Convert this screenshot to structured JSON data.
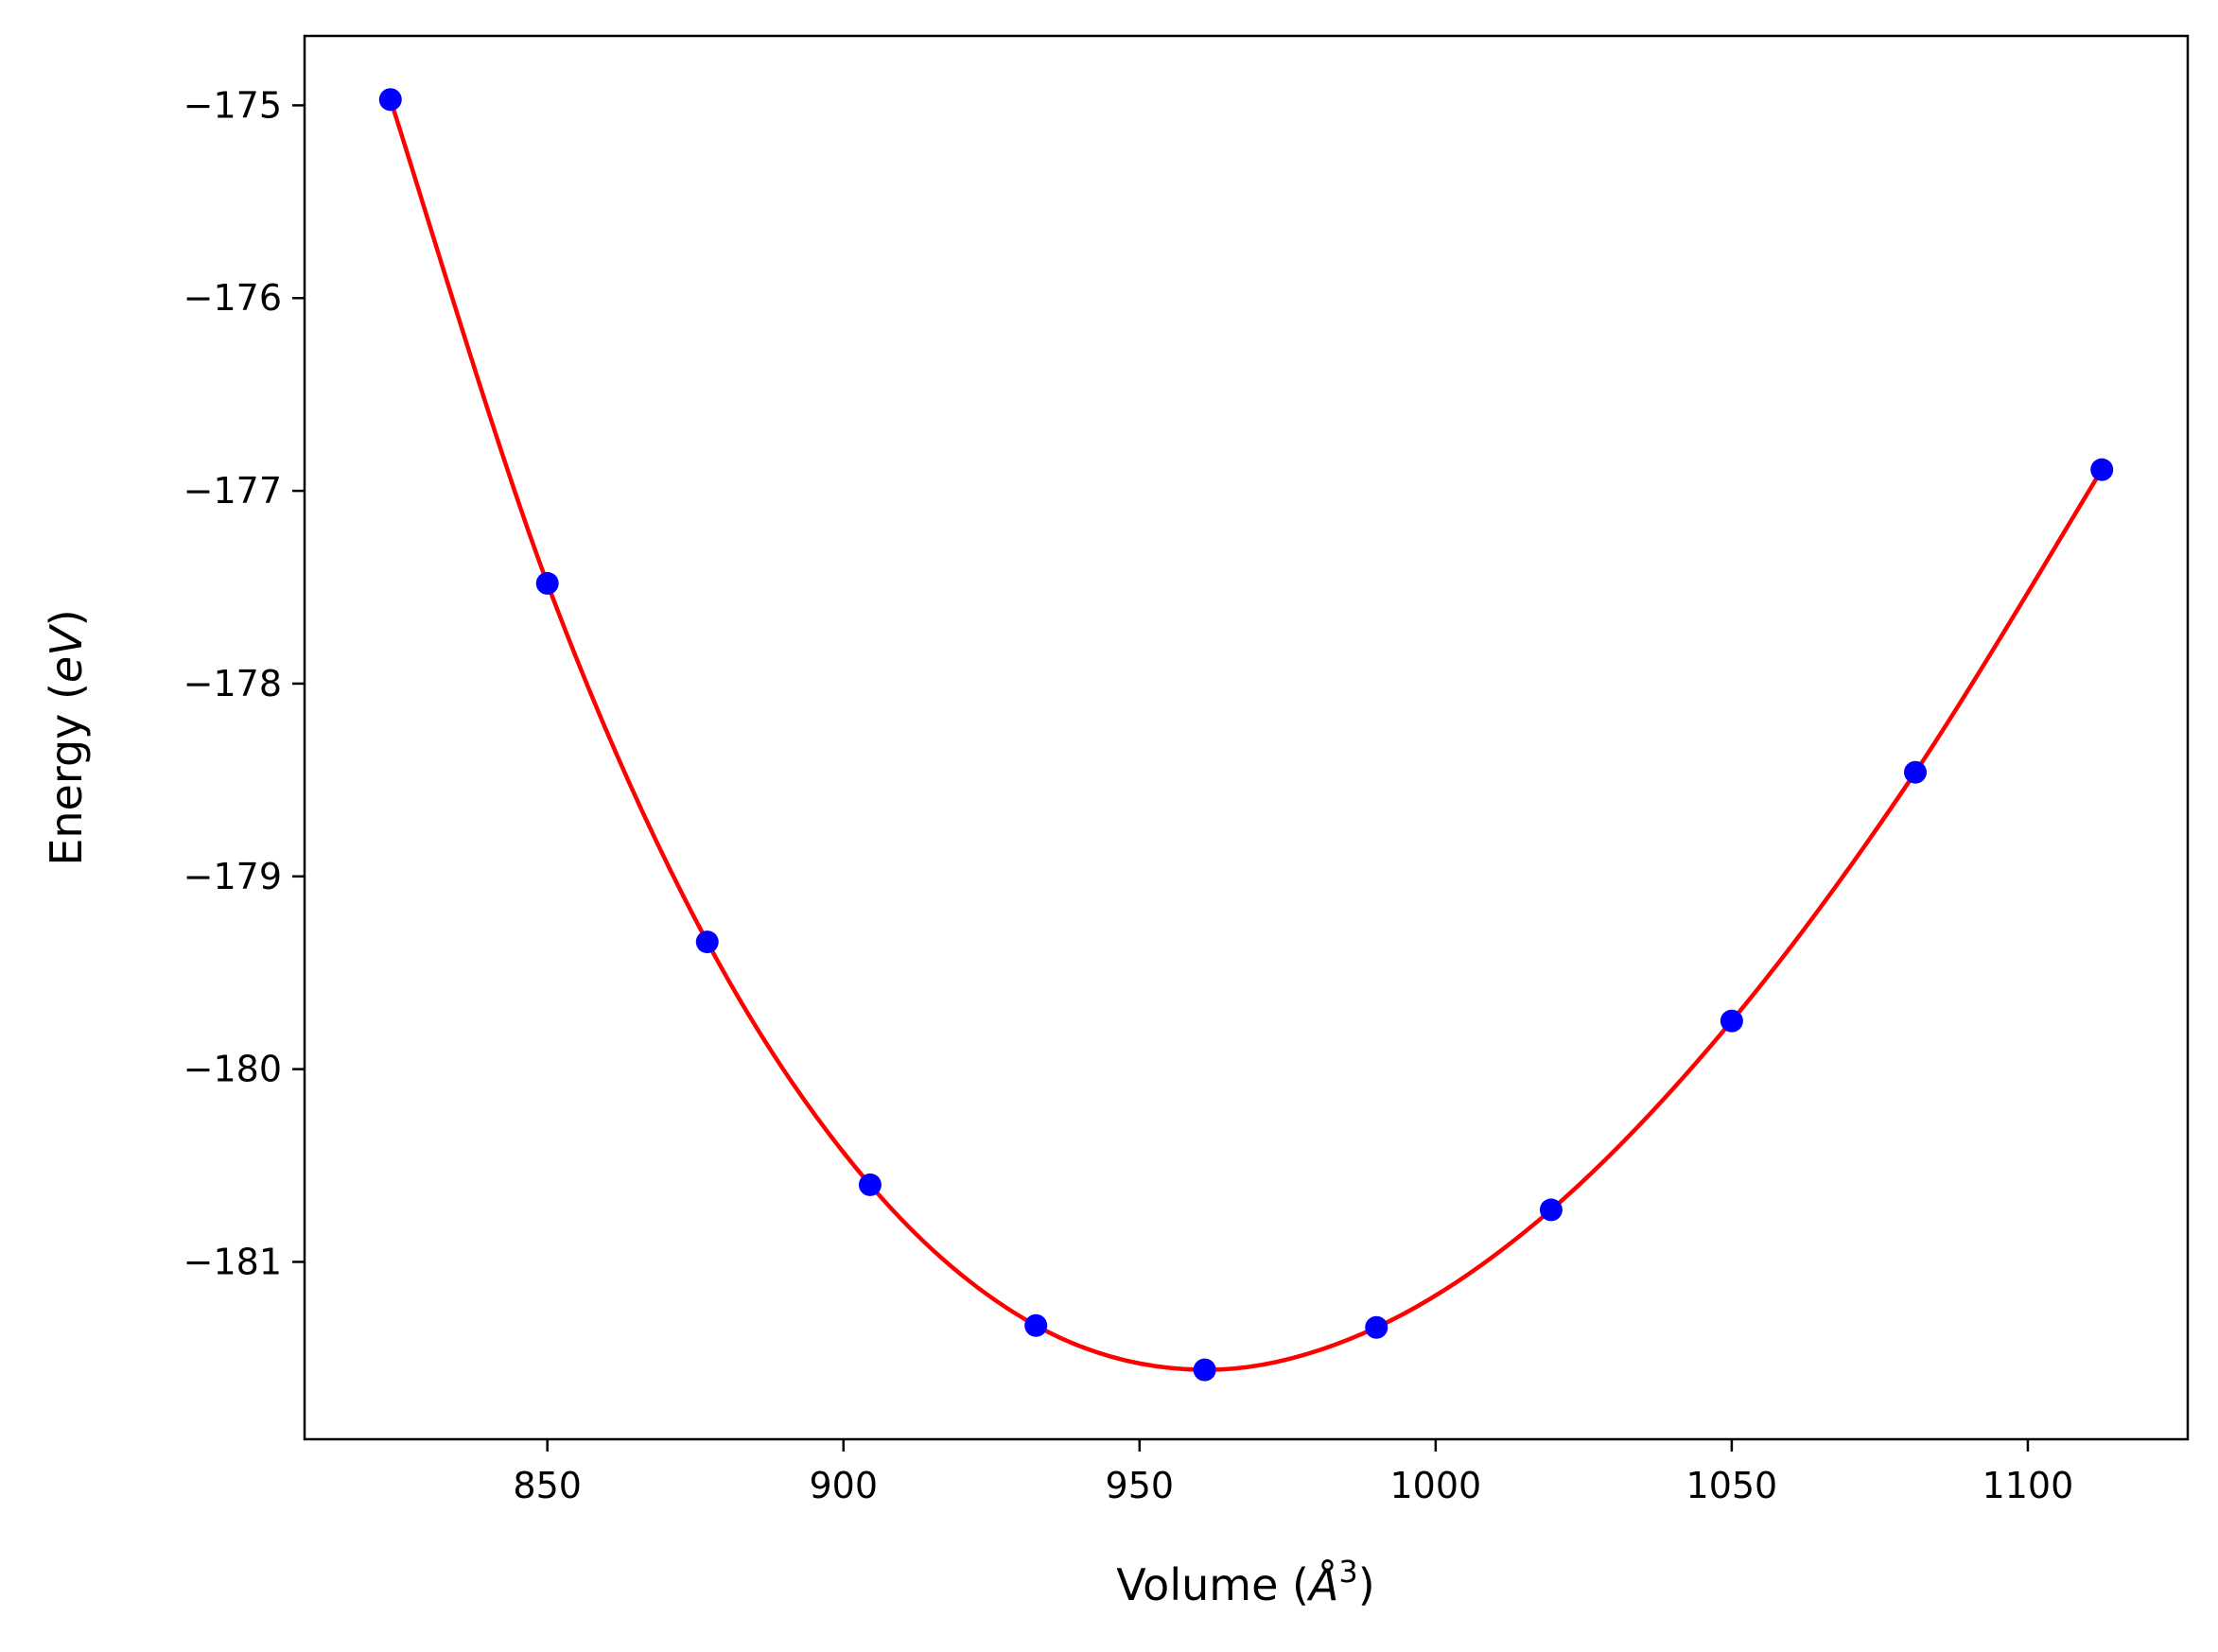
{
  "chart_data": {
    "type": "scatter",
    "xlabel": {
      "prefix": "Volume (",
      "unit": "Å",
      "sup": "3",
      "suffix": ")"
    },
    "ylabel": {
      "prefix": "Energy (",
      "unit": "eV",
      "suffix": ")"
    },
    "xlim": [
      809,
      1127
    ],
    "ylim": [
      -181.92,
      -174.64
    ],
    "xticks": [
      850,
      900,
      950,
      1000,
      1050,
      1100
    ],
    "yticks": [
      -175,
      -176,
      -177,
      -178,
      -179,
      -180,
      -181
    ],
    "xtick_labels": [
      "850",
      "900",
      "950",
      "1000",
      "1050",
      "1100"
    ],
    "ytick_labels": [
      "−175",
      "−176",
      "−177",
      "−178",
      "−179",
      "−180",
      "−181"
    ],
    "grid": false,
    "series": [
      {
        "kind": "points",
        "color": "#0000ff",
        "x": [
          823.5,
          850.0,
          877.0,
          904.5,
          932.5,
          961.0,
          990.0,
          1019.5,
          1050.0,
          1081.0,
          1112.5
        ],
        "y": [
          -174.97,
          -177.48,
          -179.34,
          -180.6,
          -181.33,
          -181.56,
          -181.34,
          -180.73,
          -179.75,
          -178.46,
          -176.89
        ]
      },
      {
        "kind": "fit-line",
        "color": "#ff0000",
        "x": [
          823.5,
          850.0,
          877.0,
          904.5,
          932.5,
          961.0,
          990.0,
          1019.5,
          1050.0,
          1081.0,
          1112.5
        ],
        "y": [
          -174.97,
          -177.48,
          -179.34,
          -180.6,
          -181.33,
          -181.56,
          -181.34,
          -180.73,
          -179.75,
          -178.46,
          -176.89
        ]
      }
    ]
  }
}
